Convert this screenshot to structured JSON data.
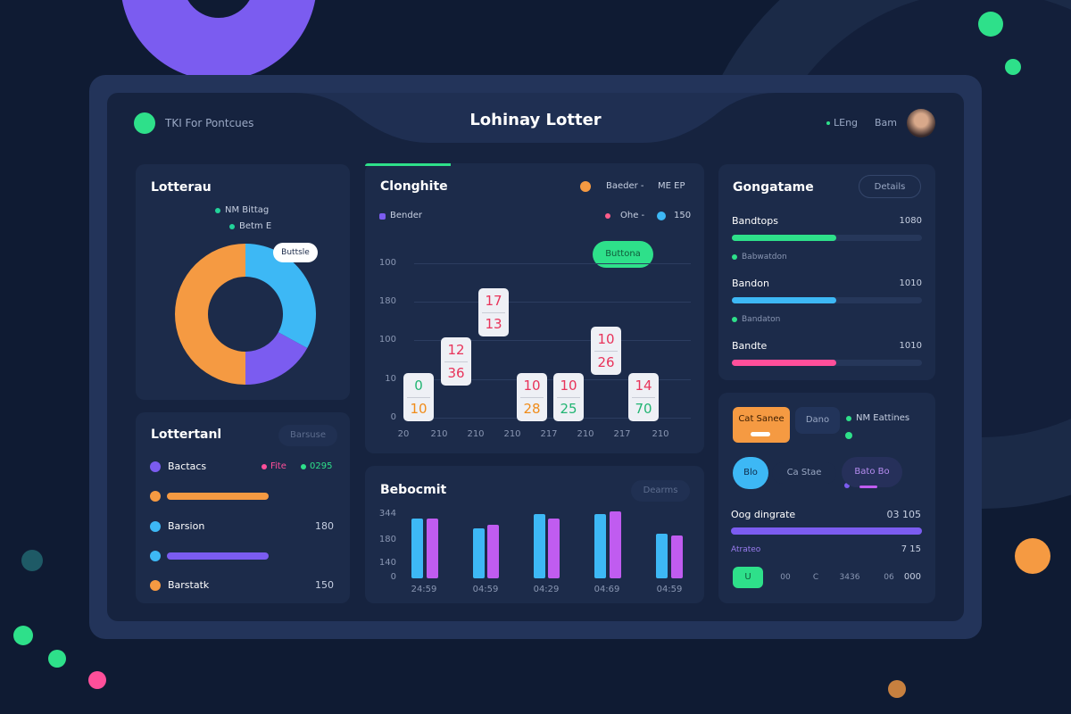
{
  "header": {
    "brand": "TKI For Pontcues",
    "title": "Lohinay Lotter",
    "language": "LEng",
    "user": "Bam"
  },
  "donut_panel": {
    "title": "Lotterau",
    "legend": [
      {
        "label": "NM Bittag",
        "color": "#22d39a"
      },
      {
        "label": "Betm E",
        "color": "#22d39a"
      }
    ],
    "tooltip": "Buttsle",
    "donut": {
      "type": "donut",
      "values": [
        33,
        17,
        50
      ],
      "colors": [
        "#3db8f5",
        "#7b5cf0",
        "#f59a42"
      ]
    }
  },
  "cards_panel": {
    "title": "Clonghite",
    "filters": [
      {
        "label": "Baeder -",
        "color": "#f59a42"
      },
      {
        "label": "ME EP"
      }
    ],
    "series_label": "Bender",
    "legend": [
      {
        "label": "Ohe -",
        "color": "#ff5c8a"
      },
      {
        "label": "150",
        "color": "#3db8f5"
      }
    ],
    "button": "Buttona",
    "y_labels": [
      "100",
      "180",
      "100",
      "10",
      "0"
    ],
    "x_labels": [
      "20",
      "210",
      "210",
      "210",
      "217",
      "210",
      "217",
      "210"
    ],
    "cards": [
      {
        "top": 0,
        "bottom": 10,
        "top_color": "#22b573",
        "bottom_color": "#f08c1a"
      },
      {
        "top": 12,
        "bottom": 36,
        "top_color": "#e8335a",
        "bottom_color": "#e8335a"
      },
      {
        "top": 17,
        "bottom": 13,
        "top_color": "#e8335a",
        "bottom_color": "#e8335a"
      },
      {
        "top": 10,
        "bottom": 28,
        "top_color": "#e8335a",
        "bottom_color": "#f08c1a"
      },
      {
        "top": 10,
        "bottom": 25,
        "top_color": "#e8335a",
        "bottom_color": "#22b573"
      },
      {
        "top": 10,
        "bottom": 26,
        "top_color": "#e8335a",
        "bottom_color": "#e8335a"
      },
      {
        "top": 14,
        "bottom": 70,
        "top_color": "#e8335a",
        "bottom_color": "#22b573"
      }
    ]
  },
  "goal_panel": {
    "title": "Gongatame",
    "button": "Details",
    "rows": [
      {
        "label": "Bandtops",
        "value": "1080",
        "progress": 55,
        "color": "#2ee08a",
        "note": "Babwatdon"
      },
      {
        "label": "Bandon",
        "value": "1010",
        "progress": 55,
        "color": "#3db8f5",
        "note": "Bandaton"
      },
      {
        "label": "Bandte",
        "value": "1010",
        "progress": 55,
        "color": "#ff4f9a"
      }
    ]
  },
  "list_panel": {
    "title": "Lottertanl",
    "button": "Barsuse",
    "rows": [
      {
        "color": "#7b5cf0",
        "label": "Bactacs",
        "legend": [
          {
            "label": "Fite",
            "color": "#ff4f9a"
          },
          {
            "label": "0295",
            "color": "#2ee08a"
          }
        ]
      },
      {
        "color": "#f59a42",
        "progress": 61,
        "bar_color": "#f59a42"
      },
      {
        "color": "#3db8f5",
        "label": "Barsion",
        "value": "180"
      },
      {
        "color": "#3db8f5",
        "progress": 61,
        "bar_color": "#7b5cf0"
      },
      {
        "color": "#f59a42",
        "label": "Barstatk",
        "value": "150"
      }
    ]
  },
  "bars_panel": {
    "title": "Bebocmit",
    "button": "Dearms",
    "y_labels": [
      "344",
      "180",
      "140",
      "0"
    ],
    "x_labels": [
      "24:59",
      "04:59",
      "04:29",
      "04:69",
      "04:59"
    ],
    "series": [
      {
        "color": "#3db8f5",
        "values": [
          67,
          56,
          72,
          72,
          50
        ]
      },
      {
        "color": "#c05cf0",
        "values": [
          67,
          60,
          67,
          75,
          48
        ]
      }
    ]
  },
  "controls_panel": {
    "buttons": [
      "Cat Sanee",
      "Dano"
    ],
    "status": "NM Eattines",
    "chips": [
      "Blo",
      "Ca Stae",
      "Bato Bo"
    ],
    "progress_title": "Oog dingrate",
    "progress_value": "03 105",
    "progress": 100,
    "sub_label": "Atrateo",
    "sub_value": "7 15",
    "pills": [
      "U",
      "00",
      "C",
      "3436",
      "06",
      "000"
    ]
  }
}
